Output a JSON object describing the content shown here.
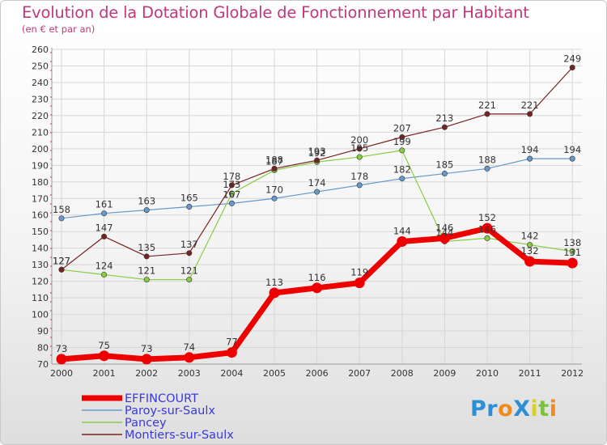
{
  "title": "Evolution de la Dotation Globale de Fonctionnement par Habitant",
  "subtitle": "(en € et par an)",
  "logo": {
    "text": "ProXiti",
    "letters": [
      {
        "ch": "P",
        "color": "#2b8fd6"
      },
      {
        "ch": "r",
        "color": "#2b8fd6"
      },
      {
        "ch": "o",
        "color": "#f08a1c"
      },
      {
        "ch": "X",
        "color": "#2b8fd6"
      },
      {
        "ch": "i",
        "color": "#d7d02a"
      },
      {
        "ch": "t",
        "color": "#7cc242"
      },
      {
        "ch": "i",
        "color": "#f08a1c"
      }
    ]
  },
  "chart_data": {
    "type": "line",
    "title": "Evolution de la Dotation Globale de Fonctionnement par Habitant",
    "subtitle": "(en € et par an)",
    "xlabel": "",
    "ylabel": "",
    "categories": [
      "2000",
      "2001",
      "2002",
      "2003",
      "2004",
      "2005",
      "2006",
      "2007",
      "2008",
      "2009",
      "2010",
      "2011",
      "2012"
    ],
    "ylim": [
      70,
      260
    ],
    "yticks": [
      70,
      80,
      90,
      100,
      110,
      120,
      130,
      140,
      150,
      160,
      170,
      180,
      190,
      200,
      210,
      220,
      230,
      240,
      250,
      260
    ],
    "grid": true,
    "legend_position": "bottom-left",
    "series": [
      {
        "name": "EFFINCOURT",
        "color": "#ee0000",
        "emphasis": true,
        "values": [
          73,
          75,
          73,
          74,
          77,
          113,
          116,
          119,
          144,
          146,
          152,
          132,
          131
        ]
      },
      {
        "name": "Paroy-sur-Saulx",
        "color": "#6699cc",
        "emphasis": false,
        "values": [
          158,
          161,
          163,
          165,
          167,
          170,
          174,
          178,
          182,
          185,
          188,
          194,
          194
        ]
      },
      {
        "name": "Pancey",
        "color": "#88cc44",
        "emphasis": false,
        "values": [
          127,
          124,
          121,
          121,
          173,
          187,
          192,
          195,
          199,
          144,
          146,
          142,
          138
        ]
      },
      {
        "name": "Montiers-sur-Saulx",
        "color": "#772222",
        "emphasis": false,
        "values": [
          127,
          147,
          135,
          137,
          178,
          188,
          193,
          200,
          207,
          213,
          221,
          221,
          249
        ]
      }
    ]
  }
}
